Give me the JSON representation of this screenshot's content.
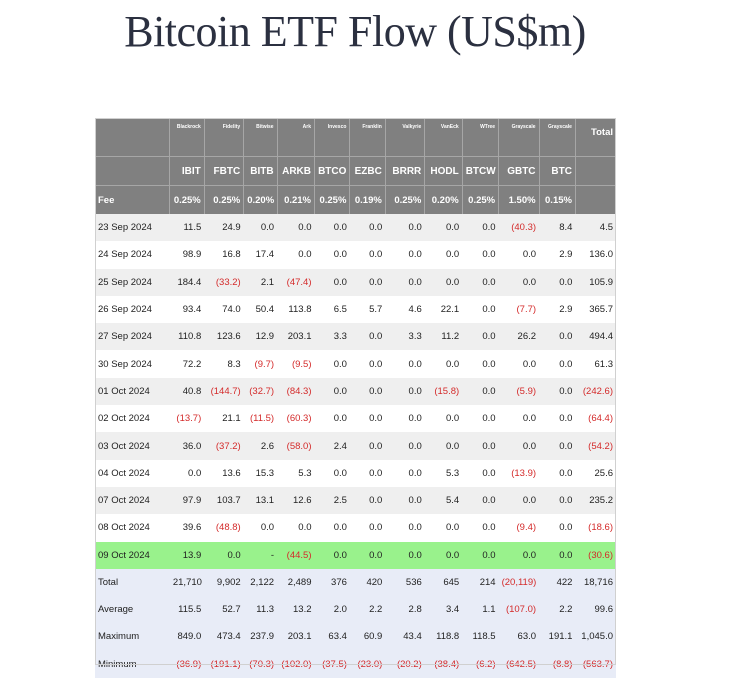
{
  "title": "Bitcoin ETF Flow (US$m)",
  "colors": {
    "header_bg": "#808080",
    "highlight_row": "#99f28c",
    "negative": "#d42a2a",
    "stats_bg": "#e8ecf7"
  },
  "header": {
    "issuers": [
      "Blackrock",
      "Fidelity",
      "Bitwise",
      "Ark",
      "Invesco",
      "Franklin",
      "Valkyrie",
      "VanEck",
      "WTree",
      "Grayscale",
      "Grayscale"
    ],
    "total_label": "Total",
    "tickers": [
      "IBIT",
      "FBTC",
      "BITB",
      "ARKB",
      "BTCO",
      "EZBC",
      "BRRR",
      "HODL",
      "BTCW",
      "GBTC",
      "BTC"
    ],
    "fee_label": "Fee",
    "fees": [
      "0.25%",
      "0.25%",
      "0.20%",
      "0.21%",
      "0.25%",
      "0.19%",
      "0.25%",
      "0.20%",
      "0.25%",
      "1.50%",
      "0.15%"
    ]
  },
  "rows": [
    {
      "date": "23 Sep 2024",
      "values": [
        "11.5",
        "24.9",
        "0.0",
        "0.0",
        "0.0",
        "0.0",
        "0.0",
        "0.0",
        "0.0",
        "(40.3)",
        "8.4",
        "4.5"
      ]
    },
    {
      "date": "24 Sep 2024",
      "values": [
        "98.9",
        "16.8",
        "17.4",
        "0.0",
        "0.0",
        "0.0",
        "0.0",
        "0.0",
        "0.0",
        "0.0",
        "2.9",
        "136.0"
      ]
    },
    {
      "date": "25 Sep 2024",
      "values": [
        "184.4",
        "(33.2)",
        "2.1",
        "(47.4)",
        "0.0",
        "0.0",
        "0.0",
        "0.0",
        "0.0",
        "0.0",
        "0.0",
        "105.9"
      ]
    },
    {
      "date": "26 Sep 2024",
      "values": [
        "93.4",
        "74.0",
        "50.4",
        "113.8",
        "6.5",
        "5.7",
        "4.6",
        "22.1",
        "0.0",
        "(7.7)",
        "2.9",
        "365.7"
      ]
    },
    {
      "date": "27 Sep 2024",
      "values": [
        "110.8",
        "123.6",
        "12.9",
        "203.1",
        "3.3",
        "0.0",
        "3.3",
        "11.2",
        "0.0",
        "26.2",
        "0.0",
        "494.4"
      ]
    },
    {
      "date": "30 Sep 2024",
      "values": [
        "72.2",
        "8.3",
        "(9.7)",
        "(9.5)",
        "0.0",
        "0.0",
        "0.0",
        "0.0",
        "0.0",
        "0.0",
        "0.0",
        "61.3"
      ]
    },
    {
      "date": "01 Oct 2024",
      "values": [
        "40.8",
        "(144.7)",
        "(32.7)",
        "(84.3)",
        "0.0",
        "0.0",
        "0.0",
        "(15.8)",
        "0.0",
        "(5.9)",
        "0.0",
        "(242.6)"
      ]
    },
    {
      "date": "02 Oct 2024",
      "values": [
        "(13.7)",
        "21.1",
        "(11.5)",
        "(60.3)",
        "0.0",
        "0.0",
        "0.0",
        "0.0",
        "0.0",
        "0.0",
        "0.0",
        "(64.4)"
      ]
    },
    {
      "date": "03 Oct 2024",
      "values": [
        "36.0",
        "(37.2)",
        "2.6",
        "(58.0)",
        "2.4",
        "0.0",
        "0.0",
        "0.0",
        "0.0",
        "0.0",
        "0.0",
        "(54.2)"
      ]
    },
    {
      "date": "04 Oct 2024",
      "values": [
        "0.0",
        "13.6",
        "15.3",
        "5.3",
        "0.0",
        "0.0",
        "0.0",
        "5.3",
        "0.0",
        "(13.9)",
        "0.0",
        "25.6"
      ]
    },
    {
      "date": "07 Oct 2024",
      "values": [
        "97.9",
        "103.7",
        "13.1",
        "12.6",
        "2.5",
        "0.0",
        "0.0",
        "5.4",
        "0.0",
        "0.0",
        "0.0",
        "235.2"
      ]
    },
    {
      "date": "08 Oct 2024",
      "values": [
        "39.6",
        "(48.8)",
        "0.0",
        "0.0",
        "0.0",
        "0.0",
        "0.0",
        "0.0",
        "0.0",
        "(9.4)",
        "0.0",
        "(18.6)"
      ]
    },
    {
      "date": "09 Oct 2024",
      "values": [
        "13.9",
        "0.0",
        "-",
        "(44.5)",
        "0.0",
        "0.0",
        "0.0",
        "0.0",
        "0.0",
        "0.0",
        "0.0",
        "(30.6)"
      ],
      "highlight": true
    }
  ],
  "stats": [
    {
      "label": "Total",
      "values": [
        "21,710",
        "9,902",
        "2,122",
        "2,489",
        "376",
        "420",
        "536",
        "645",
        "214",
        "(20,119)",
        "422",
        "18,716"
      ]
    },
    {
      "label": "Average",
      "values": [
        "115.5",
        "52.7",
        "11.3",
        "13.2",
        "2.0",
        "2.2",
        "2.8",
        "3.4",
        "1.1",
        "(107.0)",
        "2.2",
        "99.6"
      ]
    },
    {
      "label": "Maximum",
      "values": [
        "849.0",
        "473.4",
        "237.9",
        "203.1",
        "63.4",
        "60.9",
        "43.4",
        "118.8",
        "118.5",
        "63.0",
        "191.1",
        "1,045.0"
      ]
    },
    {
      "label": "Minimum",
      "values": [
        "(36.9)",
        "(191.1)",
        "(70.3)",
        "(102.0)",
        "(37.5)",
        "(23.0)",
        "(20.2)",
        "(38.4)",
        "(6.2)",
        "(642.5)",
        "(8.8)",
        "(563.7)"
      ]
    }
  ]
}
